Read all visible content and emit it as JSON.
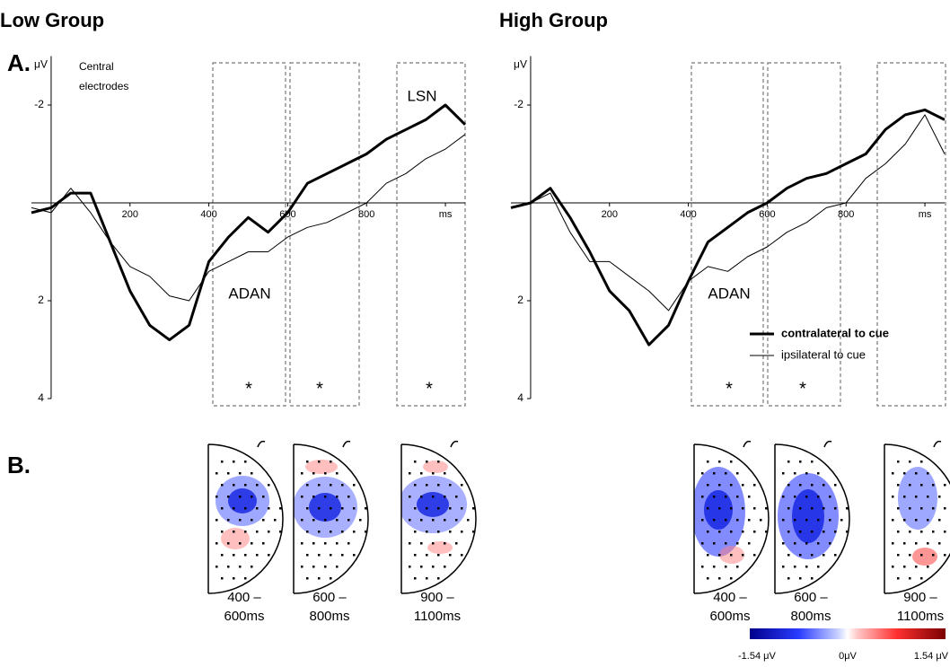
{
  "panels": {
    "a": "A.",
    "b": "B."
  },
  "chart_data": [
    {
      "type": "line",
      "title": "Low Group",
      "y_label": "μV",
      "annotations": [
        "Central electrodes",
        "LSN",
        "ADAN",
        "*",
        "*",
        "*"
      ],
      "x": [
        -50,
        0,
        50,
        100,
        150,
        200,
        250,
        300,
        350,
        400,
        450,
        500,
        550,
        600,
        650,
        700,
        750,
        800,
        850,
        900,
        950,
        1000,
        1050
      ],
      "series": [
        {
          "name": "contralateral to cue",
          "color": "#000000",
          "width": 3,
          "values": [
            0.2,
            0.1,
            -0.2,
            -0.2,
            0.8,
            1.8,
            2.5,
            2.8,
            2.5,
            1.2,
            0.7,
            0.3,
            0.6,
            0.2,
            -0.4,
            -0.6,
            -0.8,
            -1.0,
            -1.3,
            -1.5,
            -1.7,
            -2.0,
            -1.6
          ]
        },
        {
          "name": "ipsilateral to cue",
          "color": "#000000",
          "width": 1,
          "values": [
            0.1,
            0.2,
            -0.3,
            0.2,
            0.8,
            1.3,
            1.5,
            1.9,
            2.0,
            1.4,
            1.2,
            1.0,
            1.0,
            0.7,
            0.5,
            0.4,
            0.2,
            0.0,
            -0.4,
            -0.6,
            -0.9,
            -1.1,
            -1.4
          ]
        }
      ],
      "xlim": [
        -50,
        1050
      ],
      "xticks": [
        200,
        400,
        600,
        800,
        {
          "value": 1000,
          "label": "ms"
        }
      ],
      "ylim": [
        4,
        -3
      ],
      "yticks": [
        -2,
        2,
        4
      ],
      "legend": false
    },
    {
      "type": "line",
      "title": "High Group",
      "y_label": "μV",
      "annotations": [
        "ADAN",
        "*",
        "*"
      ],
      "x": [
        -50,
        0,
        50,
        100,
        150,
        200,
        250,
        300,
        350,
        400,
        450,
        500,
        550,
        600,
        650,
        700,
        750,
        800,
        850,
        900,
        950,
        1000,
        1050
      ],
      "series": [
        {
          "name": "contralateral to cue",
          "color": "#000000",
          "width": 3,
          "values": [
            0.1,
            0.0,
            -0.3,
            0.3,
            1.0,
            1.8,
            2.2,
            2.9,
            2.5,
            1.6,
            0.8,
            0.5,
            0.2,
            0.0,
            -0.3,
            -0.5,
            -0.6,
            -0.8,
            -1.0,
            -1.5,
            -1.8,
            -1.9,
            -1.7
          ]
        },
        {
          "name": "ipsilateral to cue",
          "color": "#000000",
          "width": 1,
          "values": [
            0.1,
            0.0,
            -0.2,
            0.6,
            1.2,
            1.2,
            1.5,
            1.8,
            2.2,
            1.6,
            1.3,
            1.4,
            1.1,
            0.9,
            0.6,
            0.4,
            0.1,
            0.0,
            -0.5,
            -0.8,
            -1.2,
            -1.8,
            -1.0
          ]
        }
      ],
      "xlim": [
        -50,
        1050
      ],
      "xticks": [
        200,
        400,
        600,
        800,
        {
          "value": 1000,
          "label": "ms"
        }
      ],
      "ylim": [
        4,
        -3
      ],
      "yticks": [
        -2,
        2,
        4
      ],
      "legend": "lower right"
    }
  ],
  "topomaps": {
    "low": [
      {
        "labels": [
          "400 –",
          "600ms"
        ]
      },
      {
        "labels": [
          "600 –",
          "800ms"
        ]
      },
      {
        "labels": [
          "900 –",
          "1100ms"
        ]
      }
    ],
    "high": [
      {
        "labels": [
          "400 –",
          "600ms"
        ]
      },
      {
        "labels": [
          "600 –",
          "800ms"
        ]
      },
      {
        "labels": [
          "900 –",
          "1100ms"
        ]
      }
    ]
  },
  "colorbar": {
    "labels": [
      "-1.54 μV",
      "0μV",
      "1.54 μV"
    ]
  }
}
